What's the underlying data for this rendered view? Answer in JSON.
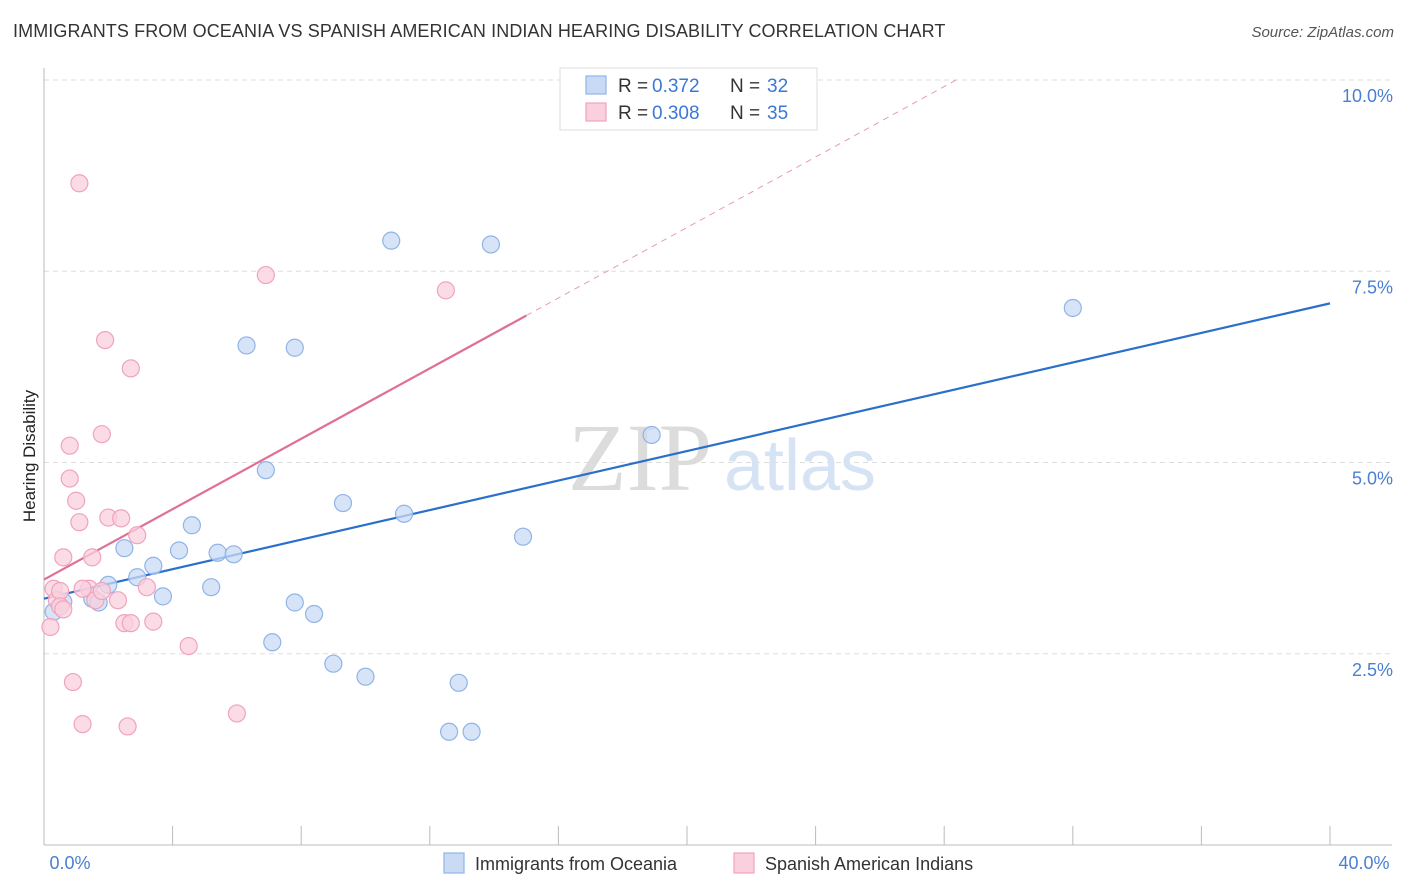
{
  "chart_data": {
    "type": "scatter",
    "title": "IMMIGRANTS FROM OCEANIA VS SPANISH AMERICAN INDIAN HEARING DISABILITY CORRELATION CHART",
    "source": "Source: ZipAtlas.com",
    "xlabel": "",
    "ylabel": "Hearing Disability",
    "xlim": [
      0,
      40
    ],
    "ylim": [
      0,
      10.3
    ],
    "x_tick_labels": {
      "min": "0.0%",
      "max": "40.0%"
    },
    "y_ticks": [
      {
        "value": 2.5,
        "label": "2.5%"
      },
      {
        "value": 5.0,
        "label": "5.0%"
      },
      {
        "value": 7.5,
        "label": "7.5%"
      },
      {
        "value": 10.0,
        "label": "10.0%"
      }
    ],
    "watermark": {
      "zip": "ZIP",
      "atlas": "atlas"
    },
    "stats_legend": [
      {
        "r_label": "R = ",
        "r_value": "0.372",
        "n_label": "N = ",
        "n_value": "32"
      },
      {
        "r_label": "R = ",
        "r_value": "0.308",
        "n_label": "N = ",
        "n_value": "35"
      }
    ],
    "series": [
      {
        "name": "Immigrants from Oceania",
        "color": "#8fb4e8",
        "fill": "#c9dbf4",
        "line_color": "#2a6fcc",
        "trend": {
          "x0": 0,
          "y0": 3.22,
          "x1": 40,
          "y1": 7.08
        },
        "points": [
          [
            0.3,
            3.05
          ],
          [
            0.6,
            3.18
          ],
          [
            1.5,
            3.22
          ],
          [
            1.7,
            3.17
          ],
          [
            2.0,
            3.4
          ],
          [
            2.5,
            3.88
          ],
          [
            2.9,
            3.5
          ],
          [
            3.4,
            3.65
          ],
          [
            3.7,
            3.25
          ],
          [
            4.2,
            3.85
          ],
          [
            4.6,
            4.18
          ],
          [
            5.2,
            3.37
          ],
          [
            5.4,
            3.82
          ],
          [
            5.9,
            3.8
          ],
          [
            6.3,
            6.53
          ],
          [
            6.9,
            4.9
          ],
          [
            7.1,
            2.65
          ],
          [
            7.8,
            6.5
          ],
          [
            7.8,
            3.17
          ],
          [
            8.4,
            3.02
          ],
          [
            9.0,
            2.37
          ],
          [
            9.3,
            4.47
          ],
          [
            10.0,
            2.2
          ],
          [
            10.8,
            7.9
          ],
          [
            11.2,
            4.33
          ],
          [
            12.6,
            1.48
          ],
          [
            12.9,
            2.12
          ],
          [
            13.3,
            1.48
          ],
          [
            13.9,
            7.85
          ],
          [
            14.9,
            4.03
          ],
          [
            18.9,
            5.36
          ],
          [
            32.0,
            7.02
          ]
        ]
      },
      {
        "name": "Spanish American Indians",
        "color": "#f0a3bc",
        "fill": "#fad0de",
        "line_color": "#e06f98",
        "trend": {
          "x0": 0,
          "y0": 3.47,
          "x1": 15.0,
          "y1": 6.92
        },
        "trend_dashed_to": {
          "x": 28.5,
          "y": 10.03
        },
        "points": [
          [
            0.2,
            2.85
          ],
          [
            0.3,
            3.35
          ],
          [
            0.4,
            3.2
          ],
          [
            0.5,
            3.32
          ],
          [
            0.5,
            3.12
          ],
          [
            0.6,
            3.08
          ],
          [
            0.6,
            3.76
          ],
          [
            0.8,
            5.22
          ],
          [
            0.8,
            4.79
          ],
          [
            0.9,
            2.13
          ],
          [
            1.0,
            4.5
          ],
          [
            1.1,
            4.22
          ],
          [
            1.2,
            1.58
          ],
          [
            1.5,
            3.76
          ],
          [
            1.4,
            3.35
          ],
          [
            1.6,
            3.2
          ],
          [
            1.1,
            8.65
          ],
          [
            1.8,
            5.37
          ],
          [
            1.8,
            3.32
          ],
          [
            2.0,
            4.28
          ],
          [
            1.2,
            3.35
          ],
          [
            2.4,
            4.27
          ],
          [
            2.5,
            2.9
          ],
          [
            1.9,
            6.6
          ],
          [
            2.3,
            3.2
          ],
          [
            2.6,
            1.55
          ],
          [
            2.7,
            6.23
          ],
          [
            2.7,
            2.9
          ],
          [
            2.9,
            4.05
          ],
          [
            3.2,
            3.37
          ],
          [
            3.4,
            2.92
          ],
          [
            4.5,
            2.6
          ],
          [
            6.0,
            1.72
          ],
          [
            6.9,
            7.45
          ],
          [
            12.5,
            7.25
          ]
        ]
      }
    ]
  }
}
